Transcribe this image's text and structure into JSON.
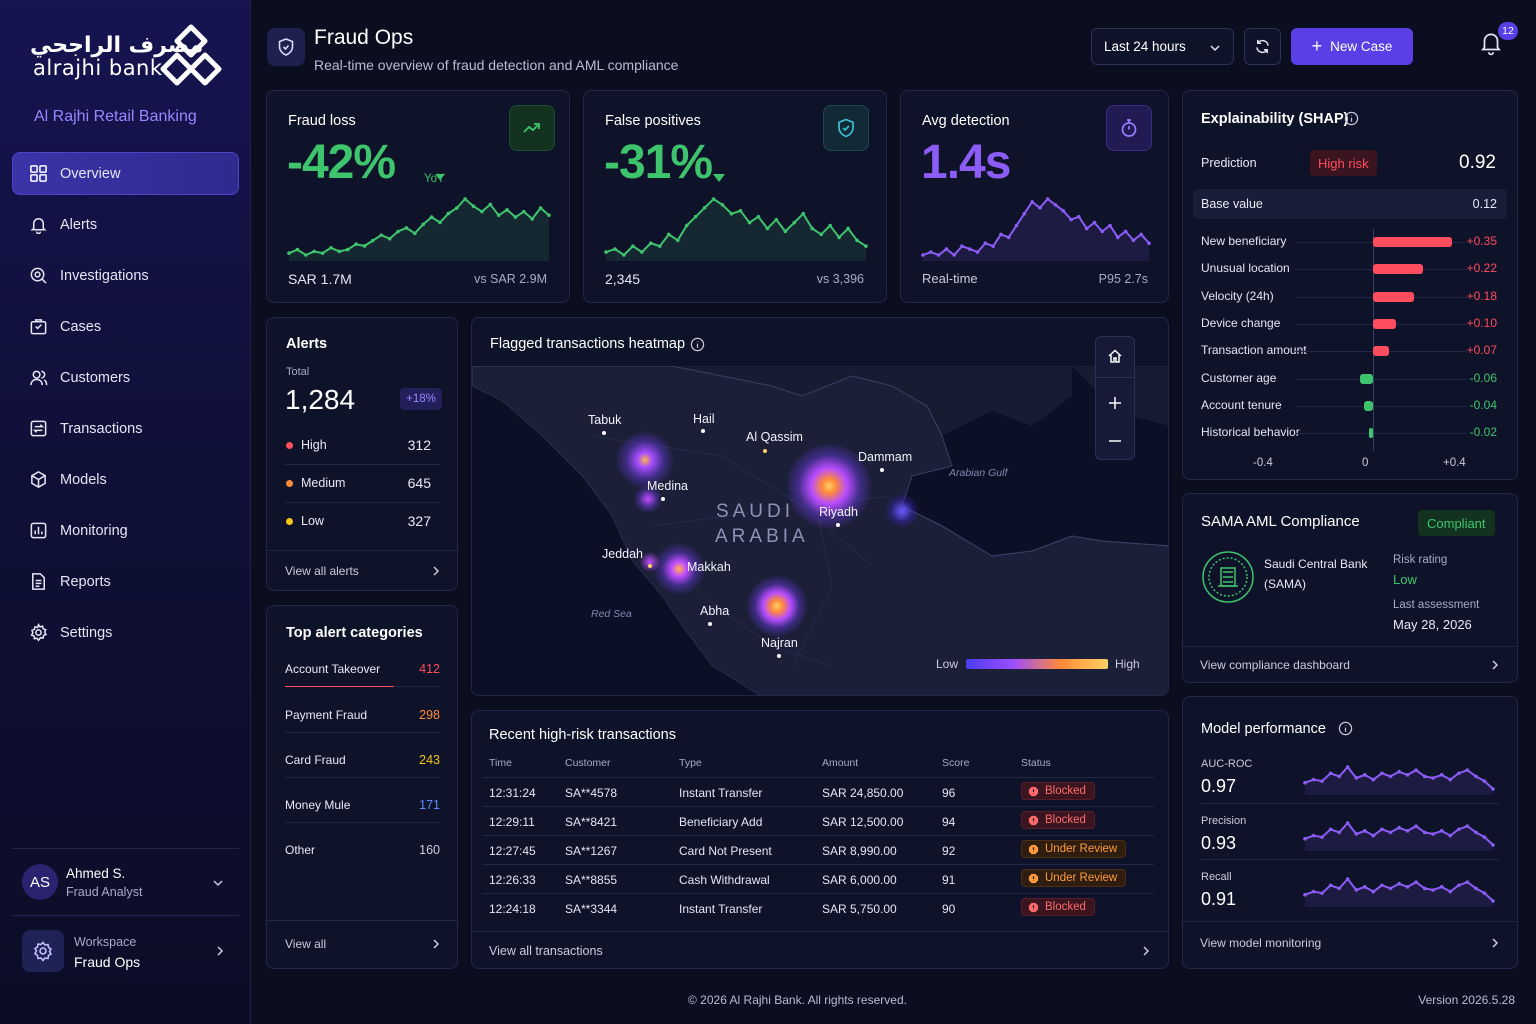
{
  "brand": {
    "arabic": "مصرف الراجحي",
    "english": "alrajhi bank",
    "subtitle": "Al Rajhi Retail Banking"
  },
  "nav": [
    {
      "label": "Overview",
      "icon": "grid-icon"
    },
    {
      "label": "Alerts",
      "icon": "bell-icon"
    },
    {
      "label": "Investigations",
      "icon": "search-icon"
    },
    {
      "label": "Cases",
      "icon": "briefcase-icon"
    },
    {
      "label": "Customers",
      "icon": "users-icon"
    },
    {
      "label": "Transactions",
      "icon": "transactions-icon"
    },
    {
      "label": "Models",
      "icon": "cube-icon"
    },
    {
      "label": "Monitoring",
      "icon": "monitor-chart-icon"
    },
    {
      "label": "Reports",
      "icon": "document-icon"
    },
    {
      "label": "Settings",
      "icon": "gear-icon"
    }
  ],
  "user": {
    "initials": "AS",
    "name": "Ahmed S.",
    "role": "Fraud Analyst"
  },
  "workspace": {
    "label": "Workspace",
    "name": "Fraud Ops"
  },
  "header": {
    "title": "Fraud Ops",
    "subtitle": "Real-time overview of fraud detection and AML compliance",
    "range": "Last 24 hours",
    "new_case": "New Case",
    "notifications": "12"
  },
  "kpis": [
    {
      "title": "Fraud loss",
      "value": "-42%",
      "suffix": "YoY",
      "left": "SAR 1.7M",
      "right": "vs SAR 2.9M",
      "color": "#3ec46d",
      "trend": [
        10,
        12,
        9,
        11,
        10,
        13,
        11,
        12,
        15,
        14,
        17,
        20,
        18,
        22,
        24,
        21,
        26,
        30,
        27,
        32,
        35,
        40,
        36,
        33,
        37,
        31,
        34,
        30,
        33,
        29,
        35,
        31
      ]
    },
    {
      "title": "False positives",
      "value": "-31%",
      "suffix": "",
      "left": "2,345",
      "right": "vs 3,396",
      "color": "#3ec46d",
      "trend": [
        12,
        13,
        11,
        14,
        12,
        15,
        14,
        18,
        16,
        21,
        24,
        27,
        30,
        28,
        25,
        26,
        22,
        24,
        20,
        23,
        19,
        22,
        25,
        20,
        18,
        21,
        17,
        20,
        16,
        14
      ]
    },
    {
      "title": "Avg detection",
      "value": "1.4s",
      "suffix": "",
      "left": "Real-time",
      "right": "P95 2.7s",
      "color": "#8b5cf6",
      "trend": [
        10,
        11,
        10,
        12,
        10,
        13,
        12,
        11,
        14,
        13,
        17,
        16,
        20,
        24,
        28,
        26,
        29,
        27,
        25,
        22,
        23,
        19,
        21,
        18,
        20,
        16,
        18,
        15,
        17,
        14
      ]
    }
  ],
  "alerts": {
    "title": "Alerts",
    "total_label": "Total",
    "total": "1,284",
    "delta": "+18%",
    "rows": [
      {
        "label": "High",
        "value": "312",
        "color": "#ff4d5e"
      },
      {
        "label": "Medium",
        "value": "645",
        "color": "#ff8a3a"
      },
      {
        "label": "Low",
        "value": "327",
        "color": "#f5c518"
      }
    ],
    "link": "View all alerts"
  },
  "categories": {
    "title": "Top alert categories",
    "rows": [
      {
        "label": "Account Takeover",
        "value": "412",
        "color": "#ff4d5e"
      },
      {
        "label": "Payment Fraud",
        "value": "298",
        "color": "#ff8a3a"
      },
      {
        "label": "Card Fraud",
        "value": "243",
        "color": "#f5c518"
      },
      {
        "label": "Money Mule",
        "value": "171",
        "color": "#5b8cff"
      },
      {
        "label": "Other",
        "value": "160",
        "color": "#c9ccde"
      }
    ],
    "link": "View all"
  },
  "heatmap": {
    "title": "Flagged transactions heatmap",
    "country": "SAUDI\nARABIA",
    "water": [
      "Arabian Gulf",
      "Red Sea"
    ],
    "cities": [
      "Tabuk",
      "Hail",
      "Al Qassim",
      "Dammam",
      "Medina",
      "Riyadh",
      "Jeddah",
      "Makkah",
      "Abha",
      "Najran"
    ],
    "legend_low": "Low",
    "legend_high": "High"
  },
  "transactions": {
    "title": "Recent high-risk transactions",
    "columns": [
      "Time",
      "Customer",
      "Type",
      "Amount",
      "Score",
      "Status"
    ],
    "rows": [
      {
        "time": "12:31:24",
        "customer": "SA**4578",
        "type": "Instant Transfer",
        "amount": "SAR 24,850.00",
        "score": "96",
        "status": "Blocked"
      },
      {
        "time": "12:29:11",
        "customer": "SA**8421",
        "type": "Beneficiary Add",
        "amount": "SAR 12,500.00",
        "score": "94",
        "status": "Blocked"
      },
      {
        "time": "12:27:45",
        "customer": "SA**1267",
        "type": "Card Not Present",
        "amount": "SAR 8,990.00",
        "score": "92",
        "status": "Under Review"
      },
      {
        "time": "12:26:33",
        "customer": "SA**8855",
        "type": "Cash Withdrawal",
        "amount": "SAR 6,000.00",
        "score": "91",
        "status": "Under Review"
      },
      {
        "time": "12:24:18",
        "customer": "SA**3344",
        "type": "Instant Transfer",
        "amount": "SAR 5,750.00",
        "score": "90",
        "status": "Blocked"
      }
    ],
    "link": "View all transactions"
  },
  "shap": {
    "title": "Explainability (SHAP)",
    "prediction_label": "Prediction",
    "risk": "High risk",
    "prediction": "0.92",
    "base_label": "Base value",
    "base": "0.12",
    "features": [
      {
        "label": "New beneficiary",
        "value": "+0.35",
        "num": 0.35
      },
      {
        "label": "Unusual location",
        "value": "+0.22",
        "num": 0.22
      },
      {
        "label": "Velocity (24h)",
        "value": "+0.18",
        "num": 0.18
      },
      {
        "label": "Device change",
        "value": "+0.10",
        "num": 0.1
      },
      {
        "label": "Transaction amount",
        "value": "+0.07",
        "num": 0.07
      },
      {
        "label": "Customer age",
        "value": "-0.06",
        "num": -0.06
      },
      {
        "label": "Account tenure",
        "value": "-0.04",
        "num": -0.04
      },
      {
        "label": "Historical behavior",
        "value": "-0.02",
        "num": -0.02
      }
    ],
    "axis": [
      "-0.4",
      "0",
      "+0.4"
    ]
  },
  "compliance": {
    "title": "SAMA AML Compliance",
    "status": "Compliant",
    "org": "Saudi Central Bank",
    "org_short": "(SAMA)",
    "risk_label": "Risk rating",
    "risk": "Low",
    "assess_label": "Last assessment",
    "assess": "May 28, 2026",
    "link": "View compliance dashboard"
  },
  "model": {
    "title": "Model performance",
    "metrics": [
      {
        "label": "AUC-ROC",
        "value": "0.97",
        "trend": [
          10,
          12,
          11,
          16,
          14,
          20,
          13,
          15,
          12,
          16,
          14,
          17,
          15,
          18,
          14,
          13,
          15,
          12,
          16,
          18,
          14,
          11,
          6
        ]
      },
      {
        "label": "Precision",
        "value": "0.93",
        "trend": [
          10,
          12,
          11,
          16,
          14,
          20,
          13,
          15,
          12,
          16,
          14,
          17,
          15,
          18,
          14,
          13,
          15,
          12,
          16,
          18,
          14,
          11,
          6
        ]
      },
      {
        "label": "Recall",
        "value": "0.91",
        "trend": [
          10,
          12,
          11,
          16,
          14,
          20,
          13,
          15,
          12,
          16,
          14,
          17,
          15,
          18,
          14,
          13,
          15,
          12,
          16,
          18,
          14,
          11,
          6
        ]
      }
    ],
    "link": "View model monitoring"
  },
  "footer": {
    "copyright": "© 2026 Al Rajhi Bank. All rights reserved.",
    "version": "Version 2026.5.28"
  }
}
